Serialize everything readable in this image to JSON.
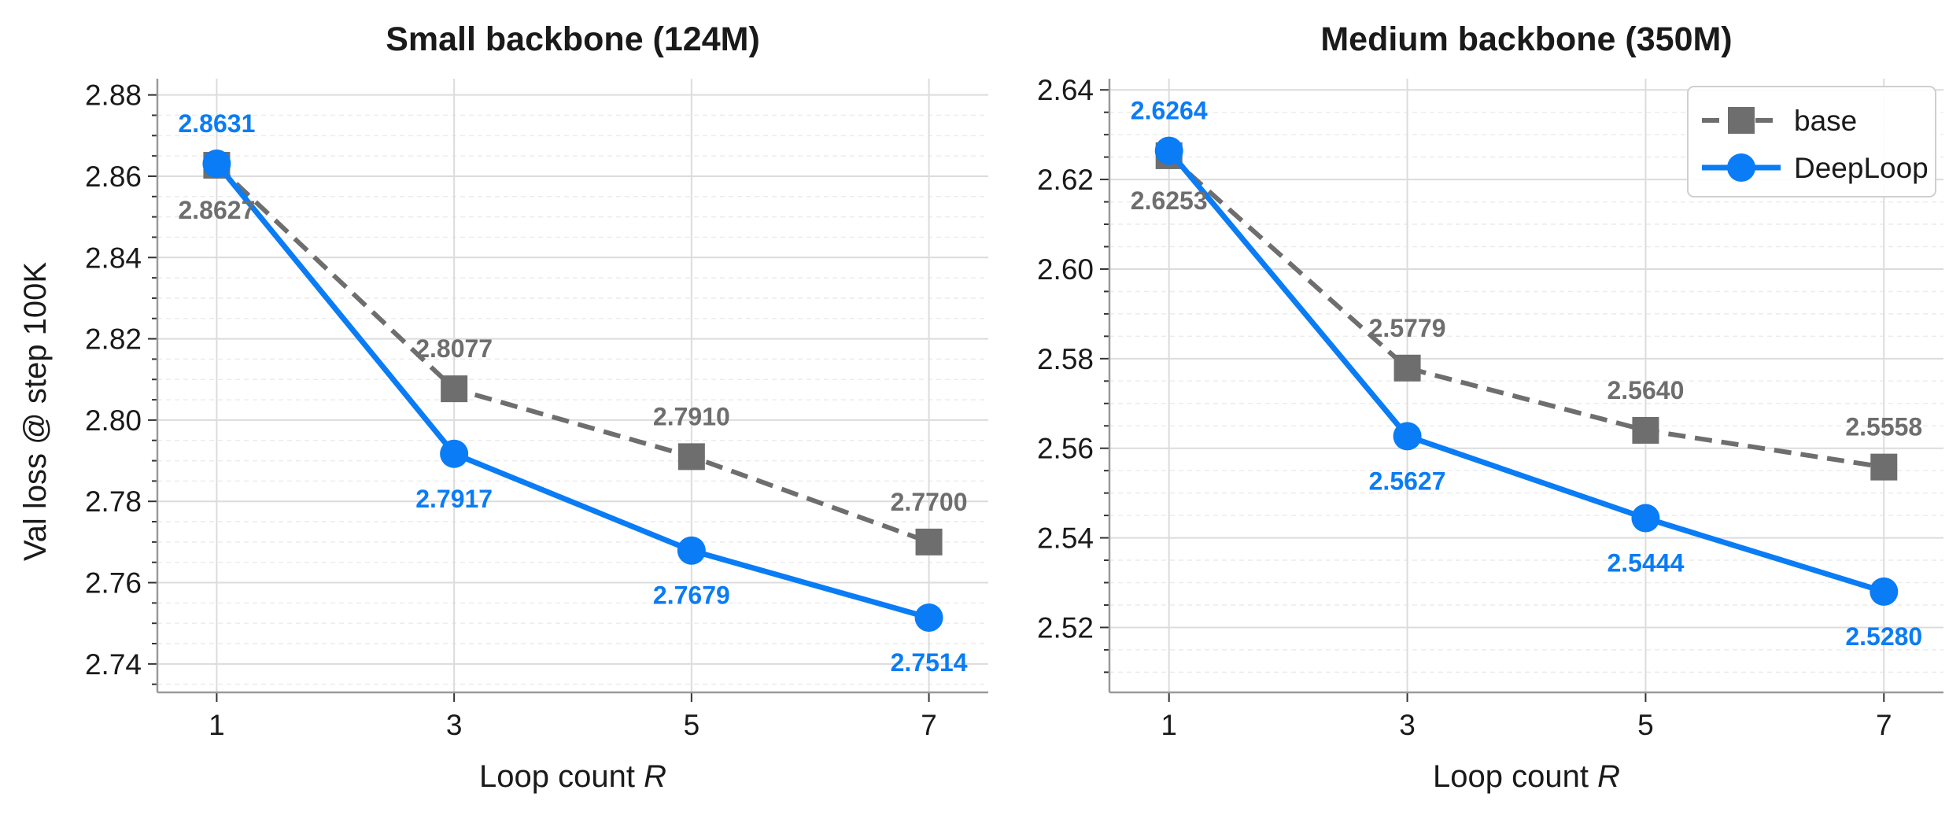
{
  "colors": {
    "base": "#6e6e6e",
    "deeploop": "#0a7cf5"
  },
  "chart_data": [
    {
      "type": "line",
      "title": "Small backbone (124M)",
      "xlabel": "Loop count R",
      "ylabel": "Val loss @ step 100K",
      "x": [
        1,
        3,
        5,
        7
      ],
      "xlim": [
        0.5,
        7.5
      ],
      "ylim": [
        2.733,
        2.884
      ],
      "yticks": [
        2.74,
        2.76,
        2.78,
        2.8,
        2.82,
        2.84,
        2.86,
        2.88
      ],
      "ytick_labels": [
        "2.74",
        "2.76",
        "2.78",
        "2.80",
        "2.82",
        "2.84",
        "2.86",
        "2.88"
      ],
      "xtick_labels": [
        "1",
        "3",
        "5",
        "7"
      ],
      "grid": true,
      "legend": null,
      "series": [
        {
          "name": "base",
          "style": "dashed",
          "marker": "square",
          "values": [
            2.8627,
            2.8077,
            2.791,
            2.77
          ],
          "labels": [
            "2.8627",
            "2.8077",
            "2.7910",
            "2.7700"
          ],
          "label_pos": [
            "below",
            "above",
            "above",
            "above"
          ]
        },
        {
          "name": "DeepLoop",
          "style": "solid",
          "marker": "circle",
          "values": [
            2.8631,
            2.7917,
            2.7679,
            2.7514
          ],
          "labels": [
            "2.8631",
            "2.7917",
            "2.7679",
            "2.7514"
          ],
          "label_pos": [
            "above",
            "below",
            "below",
            "below"
          ]
        }
      ]
    },
    {
      "type": "line",
      "title": "Medium backbone (350M)",
      "xlabel": "Loop count R",
      "ylabel": "",
      "x": [
        1,
        3,
        5,
        7
      ],
      "xlim": [
        0.5,
        7.5
      ],
      "ylim": [
        2.5055,
        2.6425
      ],
      "yticks": [
        2.52,
        2.54,
        2.56,
        2.58,
        2.6,
        2.62,
        2.64
      ],
      "ytick_labels": [
        "2.52",
        "2.54",
        "2.56",
        "2.58",
        "2.60",
        "2.62",
        "2.64"
      ],
      "xtick_labels": [
        "1",
        "3",
        "5",
        "7"
      ],
      "grid": true,
      "legend": "top-right",
      "series": [
        {
          "name": "base",
          "style": "dashed",
          "marker": "square",
          "values": [
            2.6253,
            2.5779,
            2.564,
            2.5558
          ],
          "labels": [
            "2.6253",
            "2.5779",
            "2.5640",
            "2.5558"
          ],
          "label_pos": [
            "below",
            "above",
            "above",
            "above"
          ]
        },
        {
          "name": "DeepLoop",
          "style": "solid",
          "marker": "circle",
          "values": [
            2.6264,
            2.5627,
            2.5444,
            2.528
          ],
          "labels": [
            "2.6264",
            "2.5627",
            "2.5444",
            "2.5280"
          ],
          "label_pos": [
            "above",
            "below",
            "below",
            "below"
          ]
        }
      ]
    }
  ]
}
